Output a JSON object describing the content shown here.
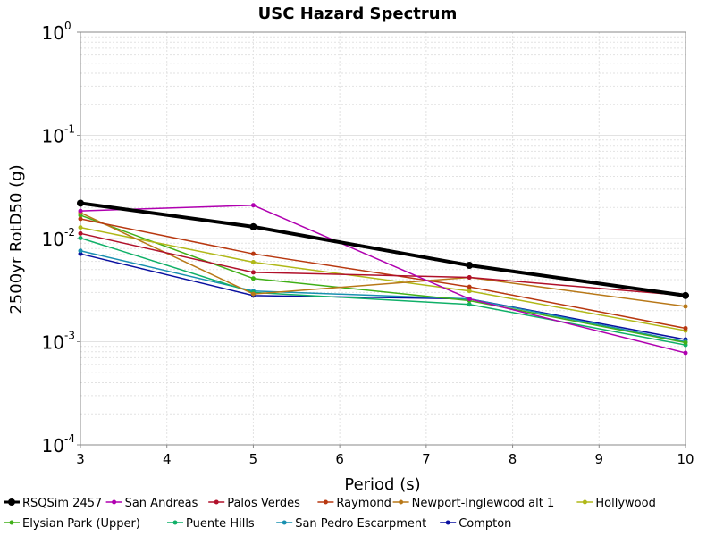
{
  "chart_data": {
    "type": "line",
    "title": "USC Hazard Spectrum",
    "xlabel": "Period (s)",
    "ylabel": "2500yr RotD50 (g)",
    "x": [
      3,
      5,
      7.5,
      10
    ],
    "xlim": [
      3,
      10
    ],
    "ylim": [
      0.0001,
      1
    ],
    "yscale": "log",
    "x_ticks": [
      "3",
      "4",
      "5",
      "6",
      "7",
      "8",
      "9",
      "10"
    ],
    "y_ticks": [
      {
        "base": "10",
        "exp": "0"
      },
      {
        "base": "10",
        "exp": "-1"
      },
      {
        "base": "10",
        "exp": "-2"
      },
      {
        "base": "10",
        "exp": "-3"
      },
      {
        "base": "10",
        "exp": "-4"
      }
    ],
    "grid": true,
    "legend_position": "bottom",
    "series": [
      {
        "name": "RSQSim 2457",
        "color": "#000000",
        "width": 4,
        "values": [
          0.022,
          0.013,
          0.0055,
          0.0028
        ],
        "scale_note": ""
      },
      {
        "name": "San Andreas",
        "color": "#b000b0",
        "values": [
          0.0185,
          0.021,
          0.0026,
          0.00078
        ]
      },
      {
        "name": "Palos Verdes",
        "color": "#b0102a",
        "values": [
          0.0112,
          0.0047,
          0.0042,
          0.0028
        ]
      },
      {
        "name": "Raymond",
        "color": "#b83810",
        "values": [
          0.0155,
          0.0071,
          0.0034,
          0.00135
        ]
      },
      {
        "name": "Newport-Inglewood alt 1",
        "color": "#b87818",
        "values": [
          0.0178,
          0.0029,
          0.0042,
          0.0022
        ]
      },
      {
        "name": "Hollywood",
        "color": "#b0b818",
        "values": [
          0.0128,
          0.0059,
          0.0031,
          0.00128
        ]
      },
      {
        "name": "Elysian Park (Upper)",
        "color": "#40b018",
        "values": [
          0.0168,
          0.0041,
          0.0025,
          0.00098
        ]
      },
      {
        "name": "Puente Hills",
        "color": "#10b068",
        "values": [
          0.0101,
          0.003,
          0.0023,
          0.00093
        ]
      },
      {
        "name": "San Pedro Escarpment",
        "color": "#1890b0",
        "values": [
          0.0076,
          0.0031,
          0.0026,
          0.001
        ]
      },
      {
        "name": "Compton",
        "color": "#0a10a0",
        "values": [
          0.0071,
          0.0028,
          0.0026,
          0.00105
        ]
      }
    ]
  }
}
